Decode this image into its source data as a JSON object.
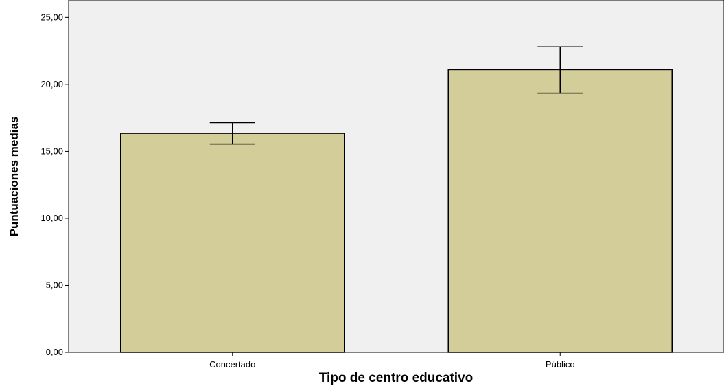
{
  "chart_data": {
    "type": "bar",
    "categories": [
      "Concertado",
      "Público"
    ],
    "values": [
      16.35,
      21.1
    ],
    "error_bars": [
      {
        "low": 15.55,
        "high": 17.15
      },
      {
        "low": 19.35,
        "high": 22.8
      }
    ],
    "xlabel": "Tipo de centro educativo",
    "ylabel": "Puntuaciones medias",
    "ylim": [
      0,
      26.3
    ],
    "yticks": [
      0,
      5,
      10,
      15,
      20,
      25
    ],
    "ytick_labels": [
      "0,00",
      "5,00",
      "10,00",
      "15,00",
      "20,00",
      "25,00"
    ],
    "grid": false,
    "colors": {
      "bar_fill": "#d3ce99",
      "plot_background": "#f0f0f0",
      "stroke": "#000000"
    }
  }
}
